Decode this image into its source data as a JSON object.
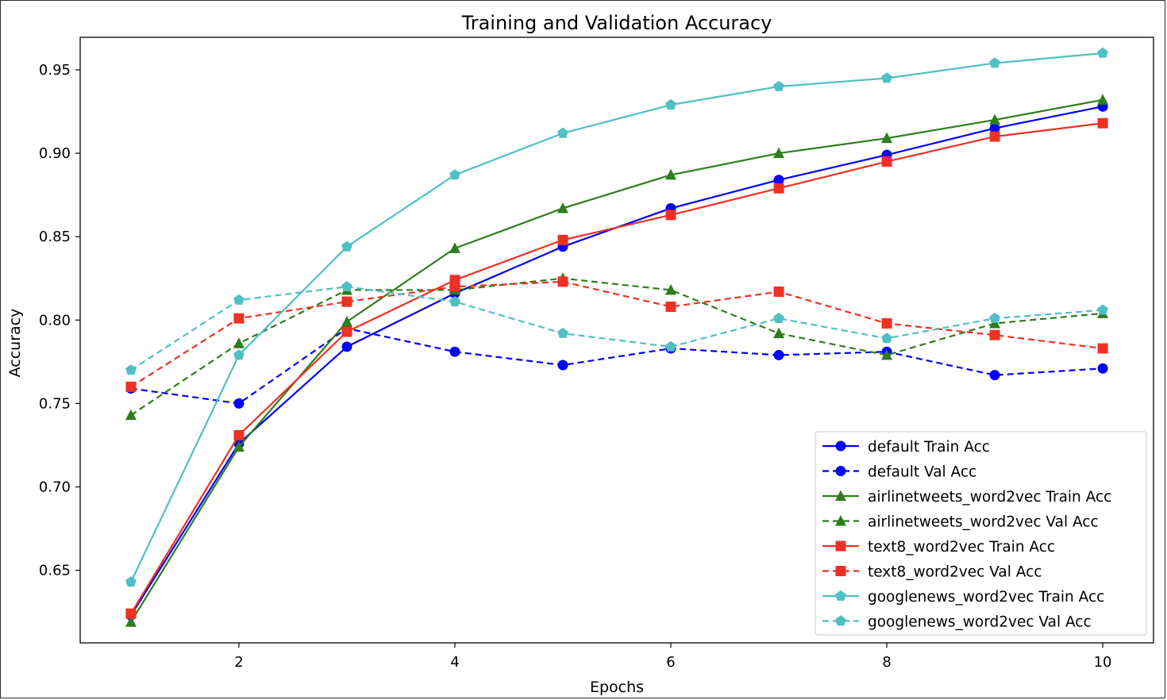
{
  "chart_data": {
    "type": "line",
    "title": "Training and Validation Accuracy",
    "xlabel": "Epochs",
    "ylabel": "Accuracy",
    "xlim": [
      0.53,
      10.47
    ],
    "ylim": [
      0.6065,
      0.9695
    ],
    "xticks": [
      2,
      4,
      6,
      8,
      10
    ],
    "xtick_labels": [
      "2",
      "4",
      "6",
      "8",
      "10"
    ],
    "yticks": [
      0.65,
      0.7,
      0.75,
      0.8,
      0.85,
      0.9,
      0.95
    ],
    "ytick_labels": [
      "0.65",
      "0.70",
      "0.75",
      "0.80",
      "0.85",
      "0.90",
      "0.95"
    ],
    "grid": false,
    "legend_position": "lower-right",
    "x": [
      1,
      2,
      3,
      4,
      5,
      6,
      7,
      8,
      9,
      10
    ],
    "series": [
      {
        "name": "default Train Acc",
        "color": "#0000ff",
        "linestyle": "solid",
        "marker": "circle",
        "values": [
          0.623,
          0.726,
          0.784,
          0.816,
          0.844,
          0.867,
          0.884,
          0.899,
          0.915,
          0.928
        ]
      },
      {
        "name": "default Val Acc",
        "color": "#0000ff",
        "linestyle": "dashed",
        "marker": "circle",
        "values": [
          0.759,
          0.75,
          0.795,
          0.781,
          0.773,
          0.783,
          0.779,
          0.781,
          0.767,
          0.771
        ]
      },
      {
        "name": "airlinetweets_word2vec Train Acc",
        "color": "#2e7d1e",
        "linestyle": "solid",
        "marker": "triangle",
        "values": [
          0.619,
          0.724,
          0.799,
          0.843,
          0.867,
          0.887,
          0.9,
          0.909,
          0.92,
          0.932
        ]
      },
      {
        "name": "airlinetweets_word2vec Val Acc",
        "color": "#2e7d1e",
        "linestyle": "dashed",
        "marker": "triangle",
        "values": [
          0.743,
          0.786,
          0.818,
          0.818,
          0.825,
          0.818,
          0.792,
          0.779,
          0.798,
          0.804
        ]
      },
      {
        "name": "text8_word2vec Train Acc",
        "color": "#ee3124",
        "linestyle": "solid",
        "marker": "square",
        "values": [
          0.624,
          0.731,
          0.793,
          0.824,
          0.848,
          0.863,
          0.879,
          0.895,
          0.91,
          0.918
        ]
      },
      {
        "name": "text8_word2vec Val Acc",
        "color": "#ee3124",
        "linestyle": "dashed",
        "marker": "square",
        "values": [
          0.76,
          0.801,
          0.811,
          0.82,
          0.823,
          0.808,
          0.817,
          0.798,
          0.791,
          0.783
        ]
      },
      {
        "name": "googlenews_word2vec Train Acc",
        "color": "#4fbfc4",
        "linestyle": "solid",
        "marker": "pentagon",
        "values": [
          0.643,
          0.779,
          0.844,
          0.887,
          0.912,
          0.929,
          0.94,
          0.945,
          0.954,
          0.96
        ]
      },
      {
        "name": "googlenews_word2vec Val Acc",
        "color": "#4fbfc4",
        "linestyle": "dashed",
        "marker": "pentagon",
        "values": [
          0.77,
          0.812,
          0.82,
          0.811,
          0.792,
          0.784,
          0.801,
          0.789,
          0.801,
          0.806
        ]
      }
    ]
  }
}
